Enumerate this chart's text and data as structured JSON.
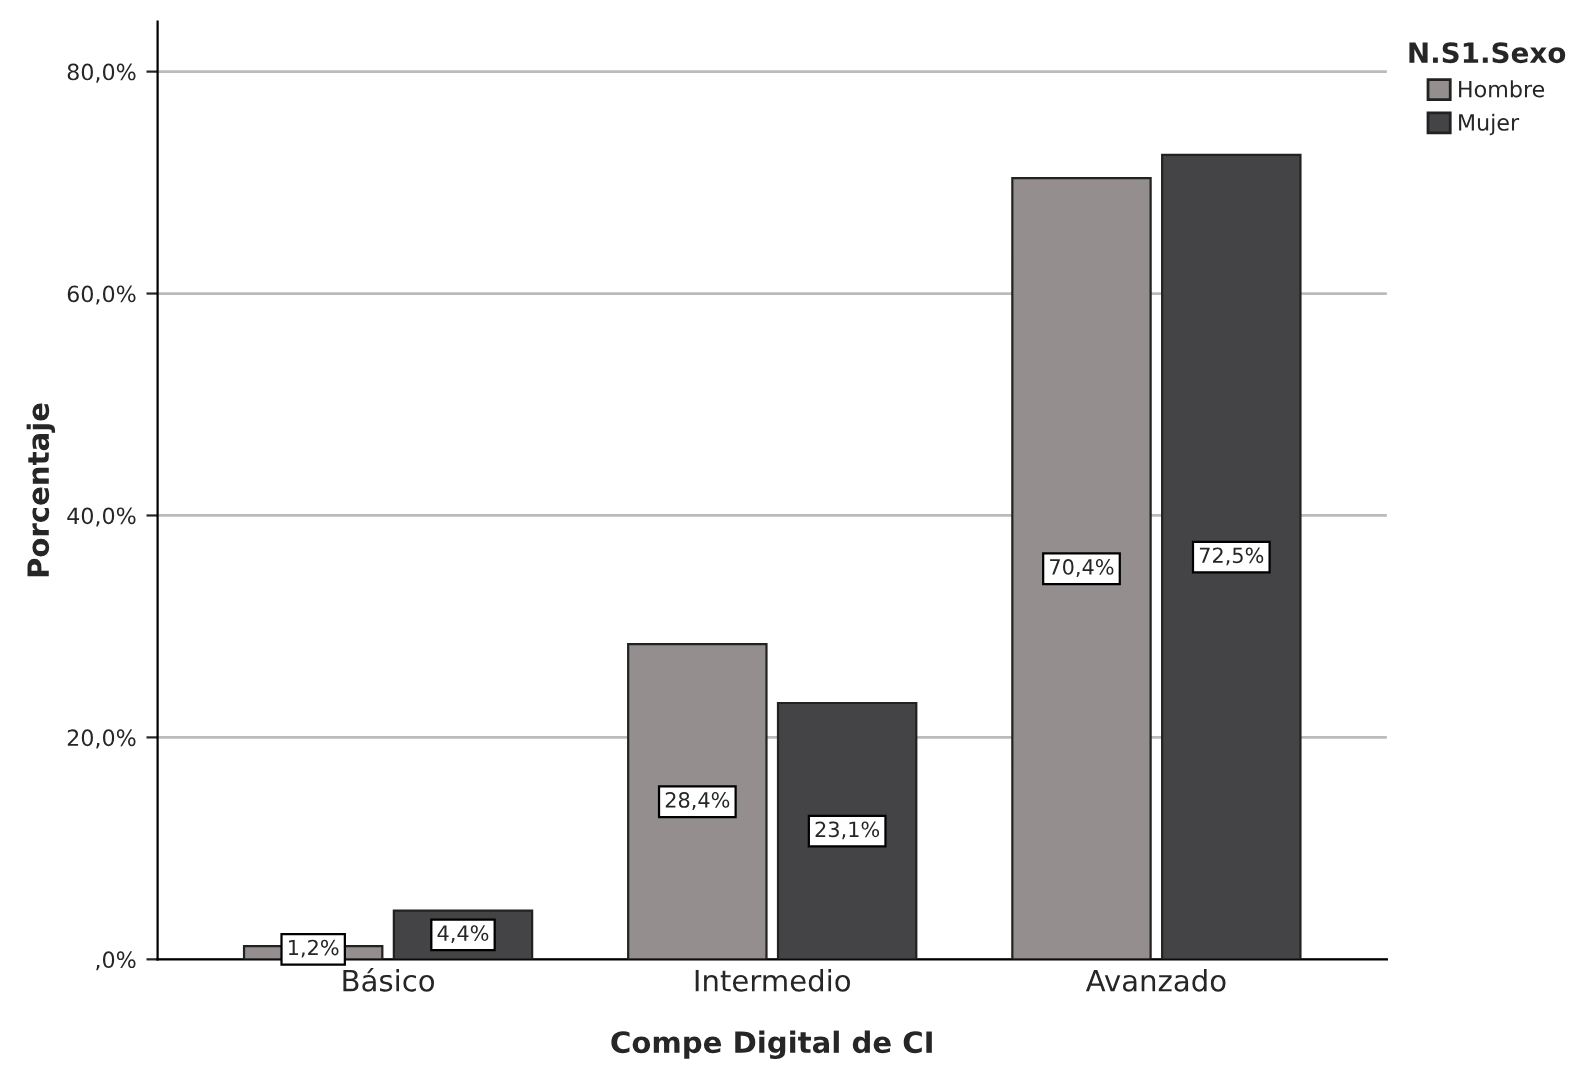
{
  "chart_data": {
    "type": "bar",
    "xlabel": "Compe Digital de CI",
    "ylabel": "Porcentaje",
    "legend_title": "N.S1.Sexo",
    "legend": "top right",
    "categories": [
      "Básico",
      "Intermedio",
      "Avanzado"
    ],
    "series": [
      {
        "name": "Hombre",
        "color": "#948f8e",
        "values": [
          1.2,
          28.4,
          70.4
        ],
        "value_labels": [
          "1,2%",
          "28,4%",
          "70,4%"
        ]
      },
      {
        "name": "Mujer",
        "color": "#444446",
        "values": [
          4.4,
          23.1,
          72.5
        ],
        "value_labels": [
          "4,4%",
          "23,1%",
          "72,5%"
        ]
      }
    ],
    "ylim": [
      0,
      84.5
    ],
    "yticks": [
      {
        "value": 0,
        "label": ",0%"
      },
      {
        "value": 20,
        "label": "20,0%"
      },
      {
        "value": 40,
        "label": "40,0%"
      },
      {
        "value": 60,
        "label": "60,0%"
      },
      {
        "value": 80,
        "label": "80,0%"
      }
    ],
    "grid": "y"
  }
}
